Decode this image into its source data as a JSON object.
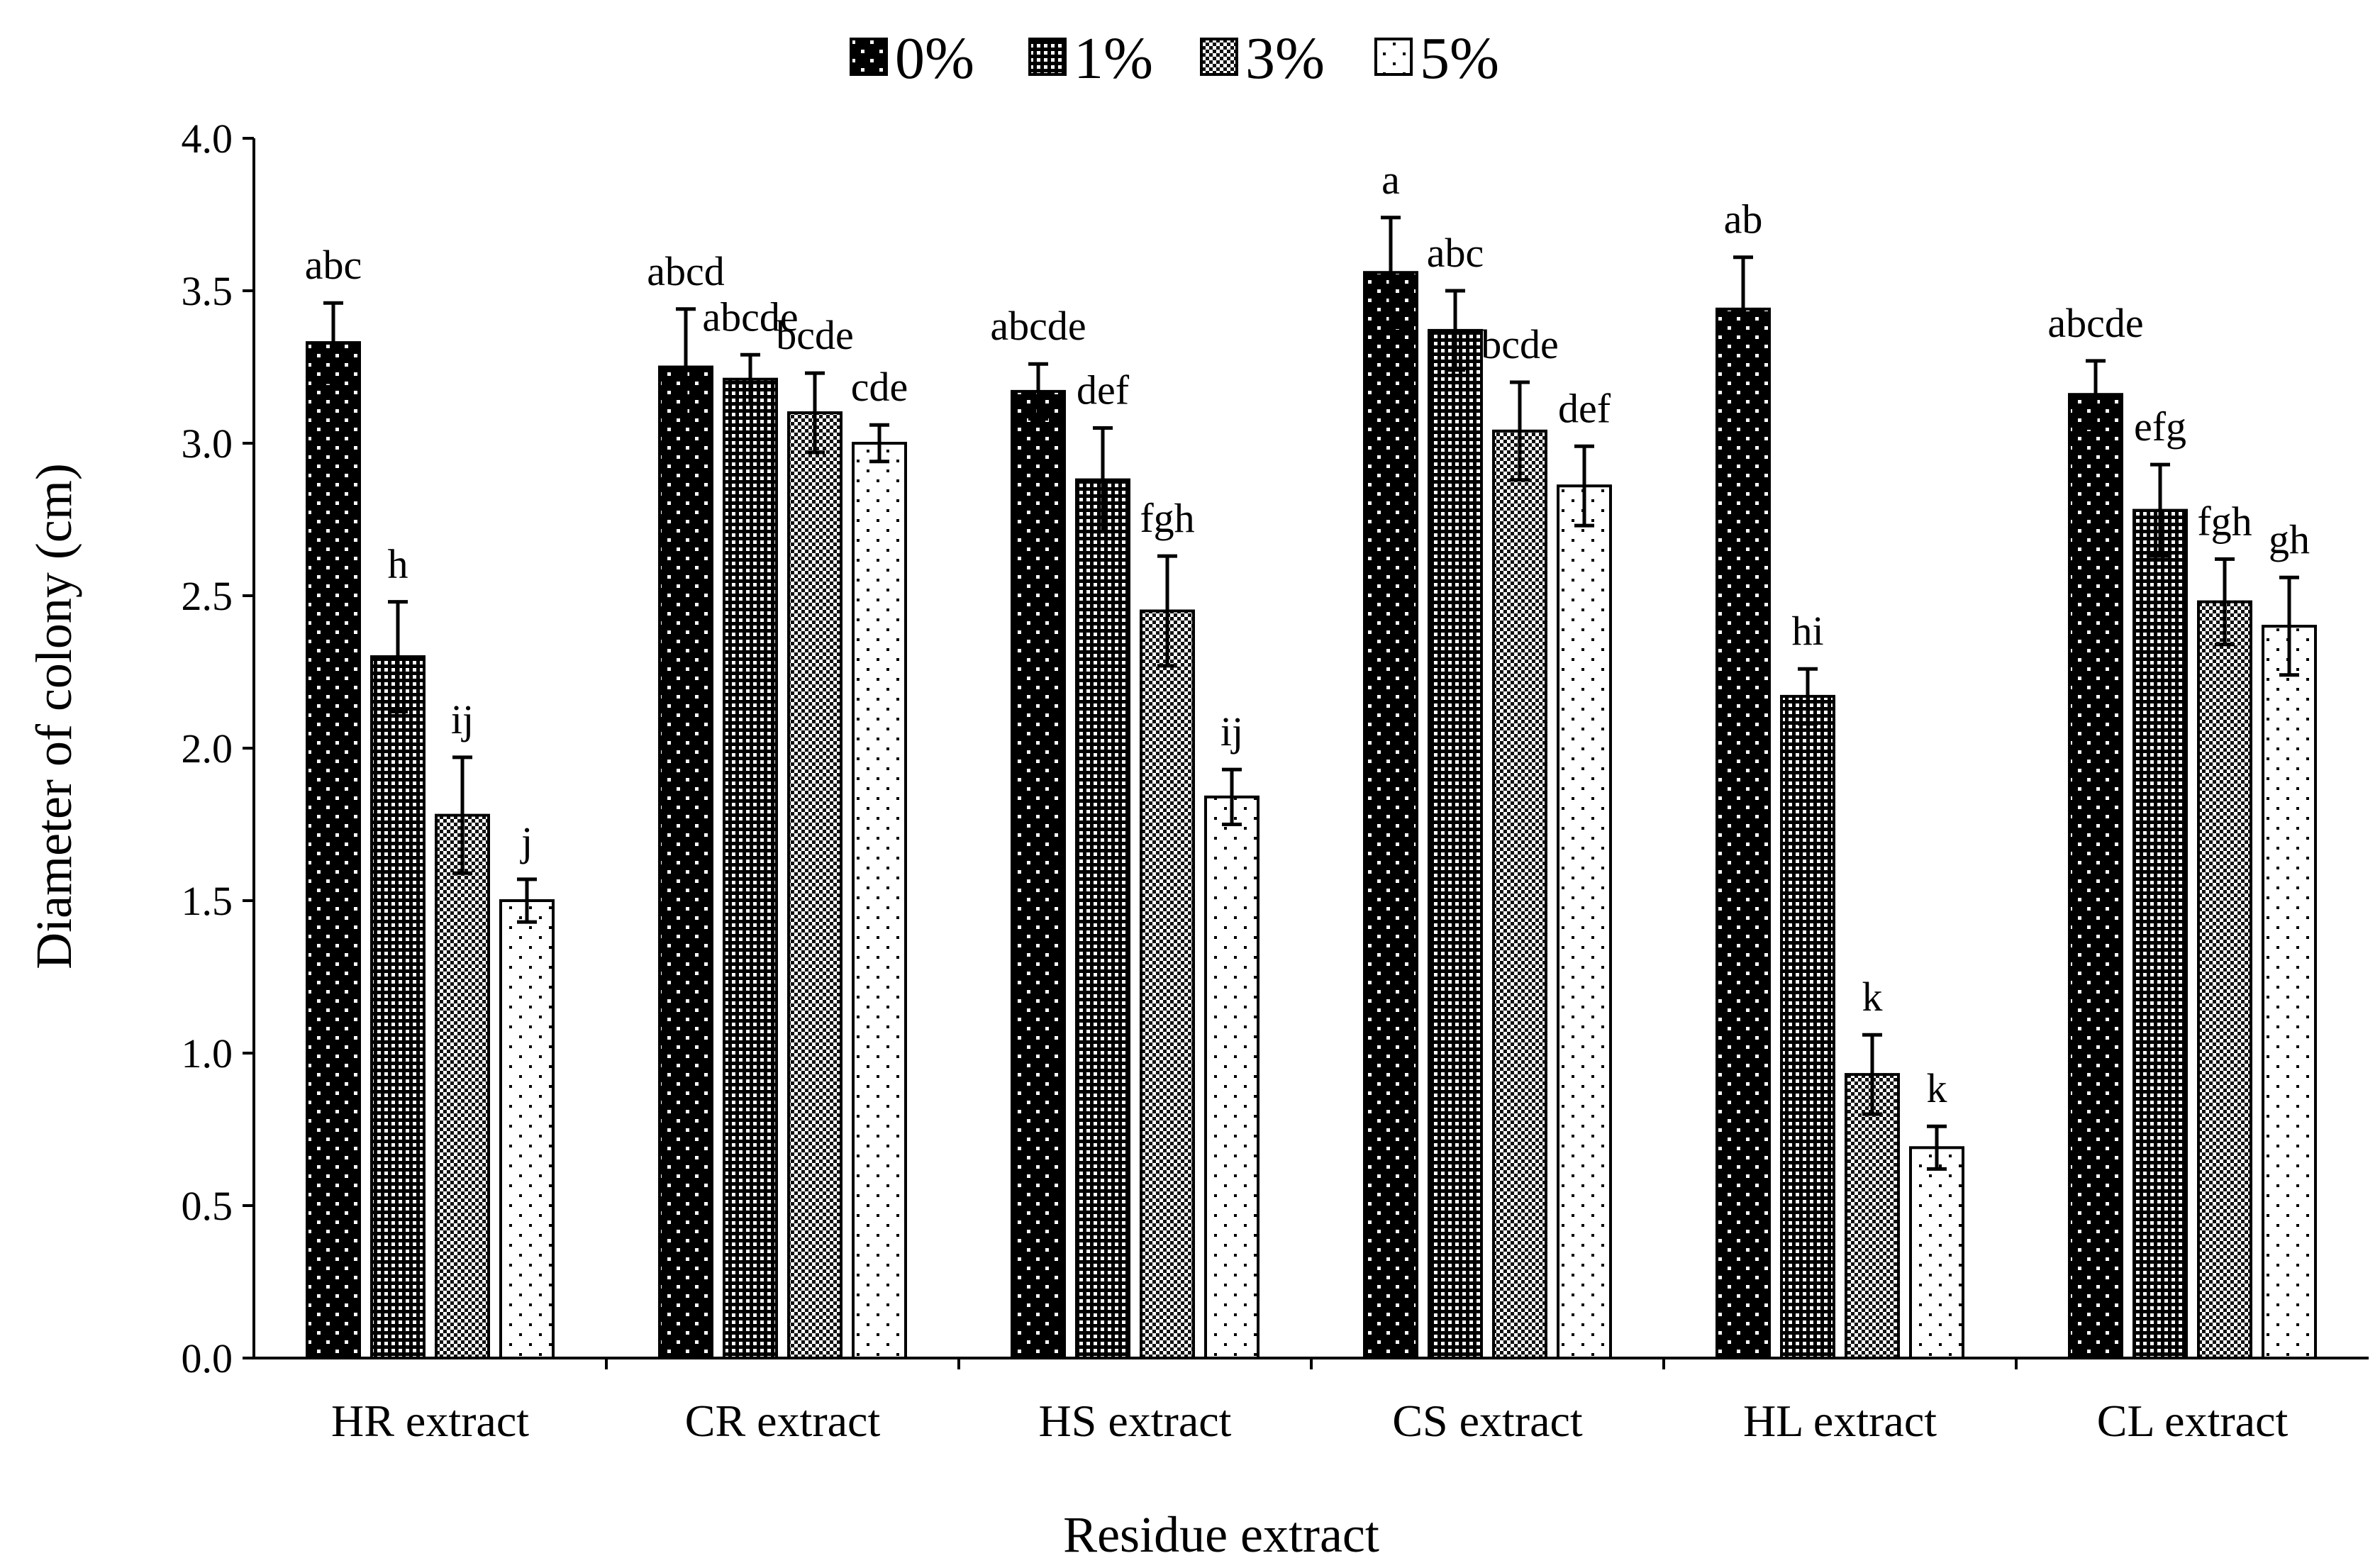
{
  "chart_data": {
    "type": "bar",
    "title": "",
    "xlabel": "Residue extract",
    "ylabel": "Diameter of colony (cm)",
    "ylim": [
      0,
      4.0
    ],
    "yticks": [
      "0.0",
      "0.5",
      "1.0",
      "1.5",
      "2.0",
      "2.5",
      "3.0",
      "3.5",
      "4.0"
    ],
    "legend_position": "top-center",
    "categories": [
      "HR extract",
      "CR extract",
      "HS extract",
      "CS extract",
      "HL extract",
      "CL extract"
    ],
    "series": [
      {
        "name": "0%",
        "pattern": "pat-dots-black",
        "values": [
          3.33,
          3.25,
          3.17,
          3.56,
          3.44,
          3.16
        ],
        "errors": [
          0.13,
          0.19,
          0.09,
          0.18,
          0.17,
          0.11
        ],
        "labels": [
          "abc",
          "abcd",
          "abcde",
          "a",
          "ab",
          "abcde"
        ]
      },
      {
        "name": "1%",
        "pattern": "pat-grid-dense",
        "values": [
          2.3,
          3.21,
          2.88,
          3.37,
          2.17,
          2.78
        ],
        "errors": [
          0.18,
          0.08,
          0.17,
          0.13,
          0.09,
          0.15
        ],
        "labels": [
          "h",
          "abcde",
          "def",
          "abc",
          "hi",
          "efg"
        ]
      },
      {
        "name": "3%",
        "pattern": "pat-checker",
        "values": [
          1.78,
          3.1,
          2.45,
          3.04,
          0.93,
          2.48
        ],
        "errors": [
          0.19,
          0.13,
          0.18,
          0.16,
          0.13,
          0.14
        ],
        "labels": [
          "ij",
          "bcde",
          "fgh",
          "bcde",
          "k",
          "fgh"
        ]
      },
      {
        "name": "5%",
        "pattern": "pat-dots-sparse",
        "values": [
          1.5,
          3.0,
          1.84,
          2.86,
          0.69,
          2.4
        ],
        "errors": [
          0.07,
          0.06,
          0.09,
          0.13,
          0.07,
          0.16
        ],
        "labels": [
          "j",
          "cde",
          "ij",
          "def",
          "k",
          "gh"
        ]
      }
    ]
  }
}
